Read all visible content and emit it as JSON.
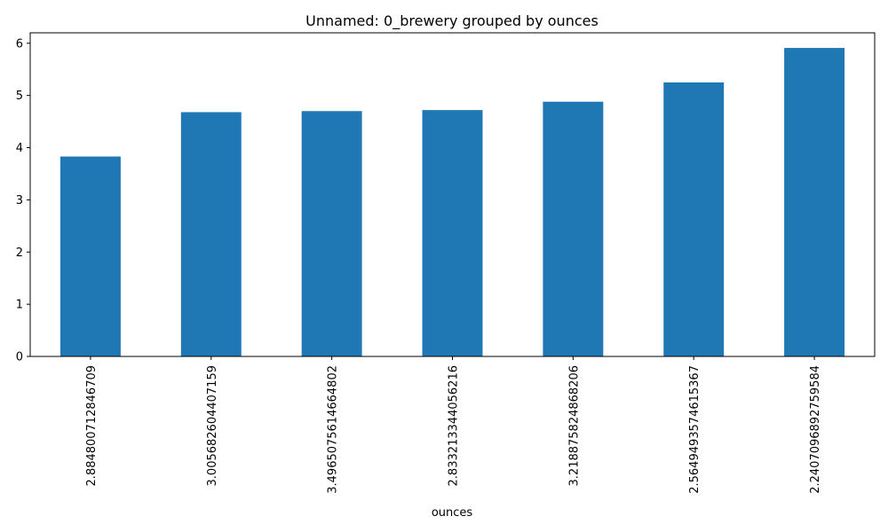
{
  "chart_data": {
    "type": "bar",
    "title": "Unnamed: 0_brewery grouped by ounces",
    "xlabel": "ounces",
    "ylabel": "",
    "categories": [
      "2.884800712846709",
      "3.005682604407159",
      "3.4965075614664802",
      "2.833213344056216",
      "3.218875824868206",
      "2.5649493574615367",
      "2.2407096892759584"
    ],
    "values": [
      3.83,
      4.68,
      4.7,
      4.72,
      4.88,
      5.25,
      5.91
    ],
    "ylim": [
      0,
      6.2
    ],
    "yticks": [
      "0",
      "1",
      "2",
      "3",
      "4",
      "5",
      "6"
    ],
    "bar_color": "#1f77b4",
    "grid": false,
    "legend": "none"
  }
}
